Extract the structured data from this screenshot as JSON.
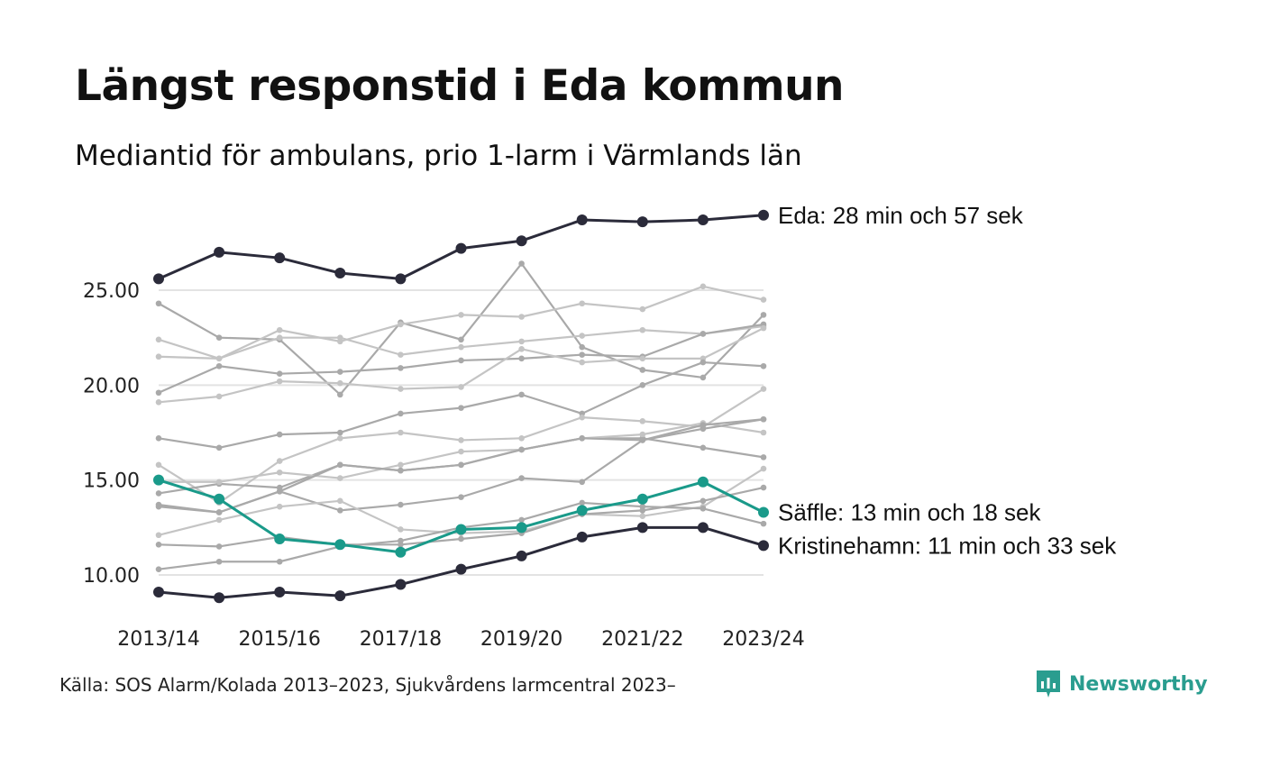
{
  "title": "Längst responstid i Eda kommun",
  "subtitle": "Mediantid för ambulans, prio 1-larm i Värmlands län",
  "source": "Källa: SOS Alarm/Kolada 2013–2023, Sjukvårdens larmcentral 2023–",
  "brand": {
    "name": "Newsworthy",
    "icon": "newsworthy-logo-icon",
    "color": "#2a9d8f"
  },
  "colors": {
    "highlight_dark": "#2b2b3a",
    "highlight_teal": "#1a9a8a",
    "muted": [
      "#a9a9a9",
      "#c4c4c4"
    ]
  },
  "chart_data": {
    "type": "line",
    "categories": [
      "2013/14",
      "2014/15",
      "2015/16",
      "2016/17",
      "2017/18",
      "2018/19",
      "2019/20",
      "2020/21",
      "2021/22",
      "2022/23",
      "2023/24"
    ],
    "x_tick_labels": [
      "2013/14",
      "2015/16",
      "2017/18",
      "2019/20",
      "2021/22",
      "2023/24"
    ],
    "ylim": [
      8,
      29.5
    ],
    "yticks": [
      10,
      15,
      20,
      25
    ],
    "ytick_labels": [
      "10.00",
      "15.00",
      "20.00",
      "25.00"
    ],
    "grid": "horizontal",
    "highlighted": [
      {
        "name": "Eda",
        "label": "Eda: 28 min och 57 sek",
        "color": "#2b2b3a",
        "values": [
          25.6,
          27.0,
          26.7,
          25.9,
          25.6,
          27.2,
          27.6,
          28.7,
          28.6,
          28.7,
          28.95
        ]
      },
      {
        "name": "Säffle",
        "label": "Säffle: 13 min och 18 sek",
        "color": "#1a9a8a",
        "values": [
          15.0,
          14.0,
          11.9,
          11.6,
          11.2,
          12.4,
          12.5,
          13.4,
          14.0,
          14.9,
          13.3
        ]
      },
      {
        "name": "Kristinehamn",
        "label": "Kristinehamn: 11 min och 33 sek",
        "color": "#2b2b3a",
        "values": [
          9.1,
          8.8,
          9.1,
          8.9,
          9.5,
          10.3,
          11.0,
          12.0,
          12.5,
          12.5,
          11.55
        ]
      }
    ],
    "background": [
      {
        "color": "#a9a9a9",
        "values": [
          24.3,
          22.5,
          22.4,
          19.5,
          23.3,
          22.4,
          26.4,
          22.0,
          20.8,
          20.4,
          23.7
        ]
      },
      {
        "color": "#c4c4c4",
        "values": [
          22.4,
          21.4,
          22.9,
          22.3,
          23.2,
          23.7,
          23.6,
          24.3,
          24.0,
          25.2,
          24.5
        ]
      },
      {
        "color": "#c4c4c4",
        "values": [
          21.5,
          21.4,
          22.5,
          22.5,
          21.6,
          22.0,
          22.3,
          22.6,
          22.9,
          22.7,
          23.1
        ]
      },
      {
        "color": "#a9a9a9",
        "values": [
          19.6,
          21.0,
          20.6,
          20.7,
          20.9,
          21.3,
          21.4,
          21.6,
          21.5,
          22.7,
          23.2
        ]
      },
      {
        "color": "#c4c4c4",
        "values": [
          19.1,
          19.4,
          20.2,
          20.1,
          19.8,
          19.9,
          21.9,
          21.2,
          21.4,
          21.4,
          23.0
        ]
      },
      {
        "color": "#a9a9a9",
        "values": [
          17.2,
          16.7,
          17.4,
          17.5,
          18.5,
          18.8,
          19.5,
          18.5,
          20.0,
          21.2,
          21.0
        ]
      },
      {
        "color": "#c4c4c4",
        "values": [
          15.8,
          13.8,
          16.0,
          17.2,
          17.5,
          17.1,
          17.2,
          18.3,
          18.1,
          17.8,
          19.8
        ]
      },
      {
        "color": "#a9a9a9",
        "values": [
          14.3,
          14.8,
          14.6,
          15.8,
          15.5,
          15.8,
          16.6,
          17.2,
          17.2,
          16.7,
          16.2
        ]
      },
      {
        "color": "#c4c4c4",
        "values": [
          14.9,
          14.9,
          15.4,
          15.1,
          15.8,
          16.5,
          16.6,
          17.2,
          17.4,
          18.0,
          17.5
        ]
      },
      {
        "color": "#a9a9a9",
        "values": [
          13.7,
          13.3,
          14.4,
          15.8,
          15.5,
          15.8,
          16.6,
          17.2,
          17.1,
          17.9,
          18.2
        ]
      },
      {
        "color": "#a9a9a9",
        "values": [
          13.6,
          13.3,
          14.4,
          13.4,
          13.7,
          14.1,
          15.1,
          14.9,
          17.1,
          17.7,
          18.2
        ]
      },
      {
        "color": "#c4c4c4",
        "values": [
          12.1,
          12.9,
          13.6,
          13.9,
          12.4,
          12.2,
          12.3,
          13.2,
          13.1,
          13.6,
          15.6
        ]
      },
      {
        "color": "#a9a9a9",
        "values": [
          11.6,
          11.5,
          12.0,
          11.6,
          11.6,
          11.9,
          12.2,
          13.2,
          13.4,
          13.9,
          14.6
        ]
      },
      {
        "color": "#a9a9a9",
        "values": [
          10.3,
          10.7,
          10.7,
          11.5,
          11.8,
          12.5,
          12.9,
          13.8,
          13.6,
          13.5,
          12.7
        ]
      }
    ]
  }
}
